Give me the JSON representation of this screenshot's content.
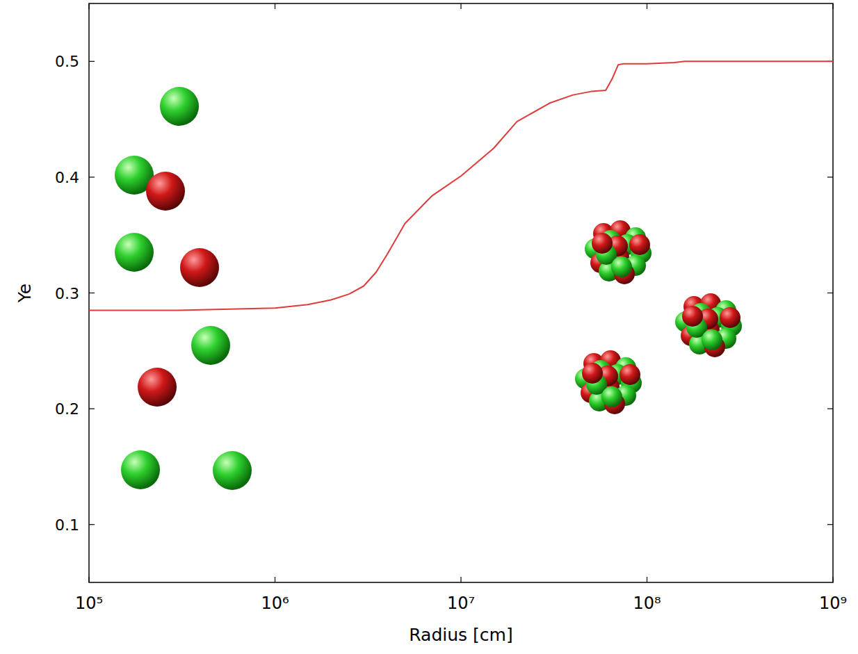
{
  "chart_data": {
    "type": "line",
    "log": "x",
    "grid": false,
    "x_label": "Radius [cm]",
    "y_label": "Ye",
    "xlim": [
      100000,
      1000000000
    ],
    "ylim": [
      0.05,
      0.55
    ],
    "xticks": [
      {
        "value": 100000,
        "label": "10⁵"
      },
      {
        "value": 1000000,
        "label": "10⁶"
      },
      {
        "value": 10000000,
        "label": "10⁷"
      },
      {
        "value": 100000000,
        "label": "10⁸"
      },
      {
        "value": 1000000000,
        "label": "10⁹"
      }
    ],
    "yticks": [
      0.1,
      0.2,
      0.3,
      0.4,
      0.5
    ],
    "series": [
      {
        "color": "#e03a3a",
        "line_style": "solid",
        "x": [
          100000,
          300000,
          1000000,
          1500000,
          2000000,
          2500000,
          3000000,
          3500000,
          4000000,
          5000000,
          7000000,
          10000000,
          15000000,
          20000000,
          30000000,
          40000000,
          50000000,
          60000000,
          65000000,
          70000000,
          75000000,
          100000000,
          140000000,
          160000000,
          1000000000
        ],
        "values": [
          0.285,
          0.285,
          0.287,
          0.29,
          0.294,
          0.299,
          0.306,
          0.318,
          0.333,
          0.36,
          0.384,
          0.401,
          0.425,
          0.448,
          0.464,
          0.471,
          0.474,
          0.475,
          0.485,
          0.497,
          0.498,
          0.498,
          0.499,
          0.5,
          0.5
        ]
      }
    ]
  }
}
